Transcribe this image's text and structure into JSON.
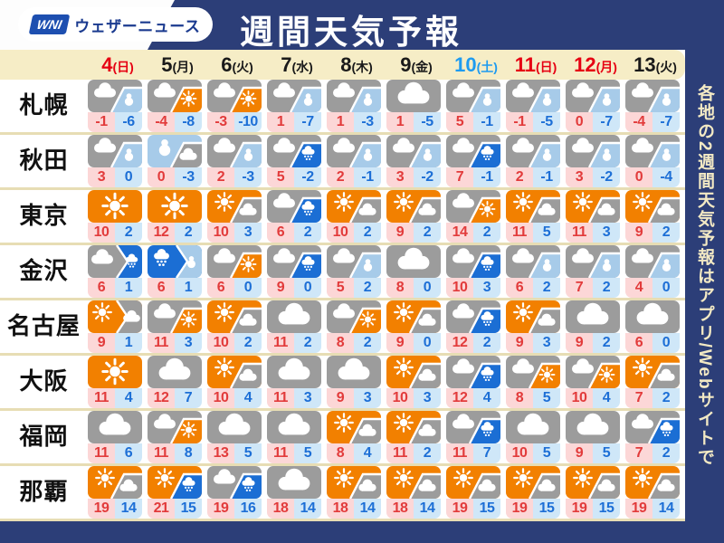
{
  "header": {
    "logo_mark": "WNI",
    "logo_text": "ウェザーニュース",
    "title": "週間天気予報"
  },
  "sidebar": {
    "vertical_text": "各地の2週間天気予報はアプリ/Webサイトで"
  },
  "colors": {
    "navy": "#2c3e78",
    "cream_band": "#f6edc6",
    "date_red": "#e60012",
    "date_blue": "#1e9bf0",
    "date_black": "#1a1a1a",
    "icon_orange": "#f28000",
    "icon_gray": "#9c9c9c",
    "icon_snow_blue": "#a7cbe9",
    "icon_rain_blue": "#1b6ed4",
    "high_temp_text": "#e23b3b",
    "low_temp_text": "#1d6fd6",
    "high_temp_bg": "#fcd7d7",
    "low_temp_bg": "#cfe7f8",
    "sidebar_text": "#f2e9c4"
  },
  "chart_data": {
    "type": "table",
    "title": "週間天気予報",
    "columns": [
      {
        "day": "4",
        "weekday": "(日)",
        "color": "red"
      },
      {
        "day": "5",
        "weekday": "(月)",
        "color": "black"
      },
      {
        "day": "6",
        "weekday": "(火)",
        "color": "black"
      },
      {
        "day": "7",
        "weekday": "(水)",
        "color": "black"
      },
      {
        "day": "8",
        "weekday": "(木)",
        "color": "black"
      },
      {
        "day": "9",
        "weekday": "(金)",
        "color": "black"
      },
      {
        "day": "10",
        "weekday": "(土)",
        "color": "blue"
      },
      {
        "day": "11",
        "weekday": "(日)",
        "color": "red"
      },
      {
        "day": "12",
        "weekday": "(月)",
        "color": "red"
      },
      {
        "day": "13",
        "weekday": "(火)",
        "color": "black"
      }
    ],
    "icon_legend": {
      "sun": "sunny (orange, sun glyph)",
      "cloud": "cloudy (gray, cloud glyph)",
      "snow": "snow (light blue, snowman glyph)",
      "rain": "rain/sleet (bright blue, rain-cloud glyph)",
      "/": "diagonal split (partly)",
      ">": "chevron split (later)"
    },
    "rows": [
      {
        "city": "札幌",
        "cells": [
          {
            "icon": "cloud/snow",
            "high": -1,
            "low": -6
          },
          {
            "icon": "cloud/sun",
            "high": -4,
            "low": -8
          },
          {
            "icon": "cloud/sun",
            "high": -3,
            "low": -10
          },
          {
            "icon": "cloud/snow",
            "high": 1,
            "low": -7
          },
          {
            "icon": "cloud/snow",
            "high": 1,
            "low": -3
          },
          {
            "icon": "cloud",
            "high": 1,
            "low": -5
          },
          {
            "icon": "cloud/snow",
            "high": 5,
            "low": -1
          },
          {
            "icon": "cloud/snow",
            "high": -1,
            "low": -5
          },
          {
            "icon": "cloud/snow",
            "high": 0,
            "low": -7
          },
          {
            "icon": "cloud/snow",
            "high": -4,
            "low": -7
          }
        ]
      },
      {
        "city": "秋田",
        "cells": [
          {
            "icon": "cloud/snow",
            "high": 3,
            "low": 0
          },
          {
            "icon": "snow/cloud",
            "high": 0,
            "low": -3
          },
          {
            "icon": "cloud/snow",
            "high": 2,
            "low": -3
          },
          {
            "icon": "cloud/rain",
            "high": 5,
            "low": -2
          },
          {
            "icon": "cloud/snow",
            "high": 2,
            "low": -1
          },
          {
            "icon": "cloud/snow",
            "high": 3,
            "low": -2
          },
          {
            "icon": "cloud/rain",
            "high": 7,
            "low": -1
          },
          {
            "icon": "cloud/snow",
            "high": 2,
            "low": -1
          },
          {
            "icon": "cloud/snow",
            "high": 3,
            "low": -2
          },
          {
            "icon": "cloud/snow",
            "high": 0,
            "low": -4
          }
        ]
      },
      {
        "city": "東京",
        "cells": [
          {
            "icon": "sun",
            "high": 10,
            "low": 2
          },
          {
            "icon": "sun",
            "high": 12,
            "low": 2
          },
          {
            "icon": "sun/cloud",
            "high": 10,
            "low": 3
          },
          {
            "icon": "cloud/rain",
            "high": 6,
            "low": 2
          },
          {
            "icon": "sun/cloud",
            "high": 10,
            "low": 2
          },
          {
            "icon": "sun/cloud",
            "high": 9,
            "low": 2
          },
          {
            "icon": "cloud/sun",
            "high": 14,
            "low": 2
          },
          {
            "icon": "sun/cloud",
            "high": 11,
            "low": 5
          },
          {
            "icon": "sun/cloud",
            "high": 11,
            "low": 3
          },
          {
            "icon": "sun/cloud",
            "high": 9,
            "low": 2
          }
        ]
      },
      {
        "city": "金沢",
        "cells": [
          {
            "icon": "cloud>rain",
            "high": 6,
            "low": 1
          },
          {
            "icon": "rain>snow",
            "high": 6,
            "low": 1
          },
          {
            "icon": "cloud/sun",
            "high": 6,
            "low": 0
          },
          {
            "icon": "cloud/rain",
            "high": 9,
            "low": 0
          },
          {
            "icon": "cloud/snow",
            "high": 5,
            "low": 2
          },
          {
            "icon": "cloud",
            "high": 8,
            "low": 0
          },
          {
            "icon": "cloud/rain",
            "high": 10,
            "low": 3
          },
          {
            "icon": "cloud/snow",
            "high": 6,
            "low": 2
          },
          {
            "icon": "cloud/snow",
            "high": 7,
            "low": 2
          },
          {
            "icon": "cloud/snow",
            "high": 4,
            "low": 0
          }
        ]
      },
      {
        "city": "名古屋",
        "cells": [
          {
            "icon": "sun>cloud",
            "high": 9,
            "low": 1
          },
          {
            "icon": "cloud/sun",
            "high": 11,
            "low": 3
          },
          {
            "icon": "sun/cloud",
            "high": 10,
            "low": 2
          },
          {
            "icon": "cloud",
            "high": 11,
            "low": 2
          },
          {
            "icon": "cloud/sun",
            "high": 8,
            "low": 2
          },
          {
            "icon": "sun/cloud",
            "high": 9,
            "low": 0
          },
          {
            "icon": "cloud/rain",
            "high": 12,
            "low": 2
          },
          {
            "icon": "sun/cloud",
            "high": 9,
            "low": 3
          },
          {
            "icon": "cloud",
            "high": 9,
            "low": 2
          },
          {
            "icon": "cloud",
            "high": 6,
            "low": 0
          }
        ]
      },
      {
        "city": "大阪",
        "cells": [
          {
            "icon": "sun",
            "high": 11,
            "low": 4
          },
          {
            "icon": "cloud",
            "high": 12,
            "low": 7
          },
          {
            "icon": "sun/cloud",
            "high": 10,
            "low": 4
          },
          {
            "icon": "cloud",
            "high": 11,
            "low": 3
          },
          {
            "icon": "cloud",
            "high": 9,
            "low": 3
          },
          {
            "icon": "sun/cloud",
            "high": 10,
            "low": 3
          },
          {
            "icon": "cloud/rain",
            "high": 12,
            "low": 4
          },
          {
            "icon": "cloud/sun",
            "high": 8,
            "low": 5
          },
          {
            "icon": "cloud/sun",
            "high": 10,
            "low": 4
          },
          {
            "icon": "sun/cloud",
            "high": 7,
            "low": 2
          }
        ]
      },
      {
        "city": "福岡",
        "cells": [
          {
            "icon": "cloud",
            "high": 11,
            "low": 6
          },
          {
            "icon": "cloud/sun",
            "high": 11,
            "low": 8
          },
          {
            "icon": "cloud",
            "high": 13,
            "low": 5
          },
          {
            "icon": "cloud",
            "high": 11,
            "low": 5
          },
          {
            "icon": "sun/cloud",
            "high": 8,
            "low": 4
          },
          {
            "icon": "sun/cloud",
            "high": 11,
            "low": 2
          },
          {
            "icon": "cloud/rain",
            "high": 11,
            "low": 7
          },
          {
            "icon": "cloud",
            "high": 10,
            "low": 5
          },
          {
            "icon": "cloud",
            "high": 9,
            "low": 5
          },
          {
            "icon": "cloud/rain",
            "high": 7,
            "low": 2
          }
        ]
      },
      {
        "city": "那覇",
        "cells": [
          {
            "icon": "sun/cloud",
            "high": 19,
            "low": 14
          },
          {
            "icon": "sun/rain",
            "high": 21,
            "low": 15
          },
          {
            "icon": "cloud/rain",
            "high": 19,
            "low": 16
          },
          {
            "icon": "cloud",
            "high": 18,
            "low": 14
          },
          {
            "icon": "sun/cloud",
            "high": 18,
            "low": 14
          },
          {
            "icon": "sun/cloud",
            "high": 18,
            "low": 14
          },
          {
            "icon": "sun/cloud",
            "high": 19,
            "low": 15
          },
          {
            "icon": "sun/cloud",
            "high": 19,
            "low": 15
          },
          {
            "icon": "sun/cloud",
            "high": 19,
            "low": 15
          },
          {
            "icon": "sun/cloud",
            "high": 19,
            "low": 14
          }
        ]
      }
    ]
  }
}
